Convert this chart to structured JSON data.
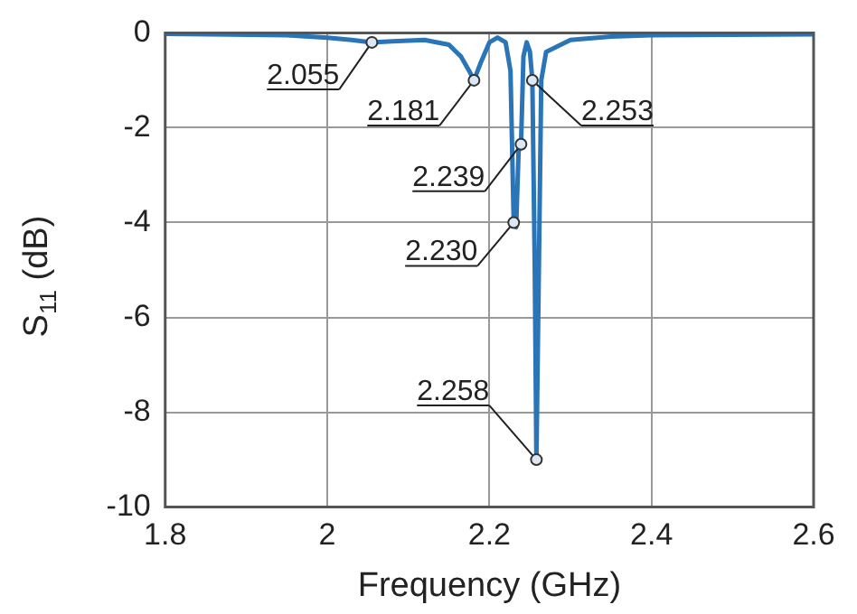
{
  "chart_data": {
    "type": "line",
    "xlabel": "Frequency (GHz)",
    "ylabel": "S$_{11}$ (dB)",
    "xlim": [
      1.8,
      2.6
    ],
    "xticks": [
      1.8,
      2,
      2.2,
      2.4,
      2.6
    ],
    "ylim": [
      -10,
      0
    ],
    "yticks": [
      -10,
      -8,
      -6,
      -4,
      -2,
      0
    ],
    "grid": true,
    "legend": false,
    "line_style": "solid",
    "marker": "none",
    "series": [
      {
        "color": "#2a74b8",
        "x": [
          1.8,
          1.95,
          2.0,
          2.03,
          2.055,
          2.08,
          2.12,
          2.15,
          2.165,
          2.175,
          2.181,
          2.19,
          2.2,
          2.21,
          2.22,
          2.226,
          2.23,
          2.233,
          2.236,
          2.239,
          2.242,
          2.246,
          2.25,
          2.253,
          2.256,
          2.258,
          2.261,
          2.264,
          2.27,
          2.3,
          2.35,
          2.4,
          2.6
        ],
        "values": [
          -0.02,
          -0.05,
          -0.1,
          -0.15,
          -0.2,
          -0.18,
          -0.15,
          -0.25,
          -0.5,
          -0.8,
          -1.0,
          -0.6,
          -0.2,
          -0.1,
          -0.2,
          -0.8,
          -4.0,
          -4.1,
          -2.5,
          -2.35,
          -0.5,
          -0.2,
          -0.4,
          -1.0,
          -5.0,
          -9.0,
          -5.0,
          -1.0,
          -0.4,
          -0.15,
          -0.08,
          -0.05,
          -0.03
        ]
      }
    ],
    "annotations": [
      {
        "text": "2.055",
        "x": 2.055,
        "y": -0.2
      },
      {
        "text": "2.181",
        "x": 2.181,
        "y": -1.0
      },
      {
        "text": "2.230",
        "x": 2.23,
        "y": -4.0
      },
      {
        "text": "2.239",
        "x": 2.239,
        "y": -2.35
      },
      {
        "text": "2.253",
        "x": 2.253,
        "y": -1.0
      },
      {
        "text": "2.258",
        "x": 2.258,
        "y": -9.0
      }
    ]
  }
}
